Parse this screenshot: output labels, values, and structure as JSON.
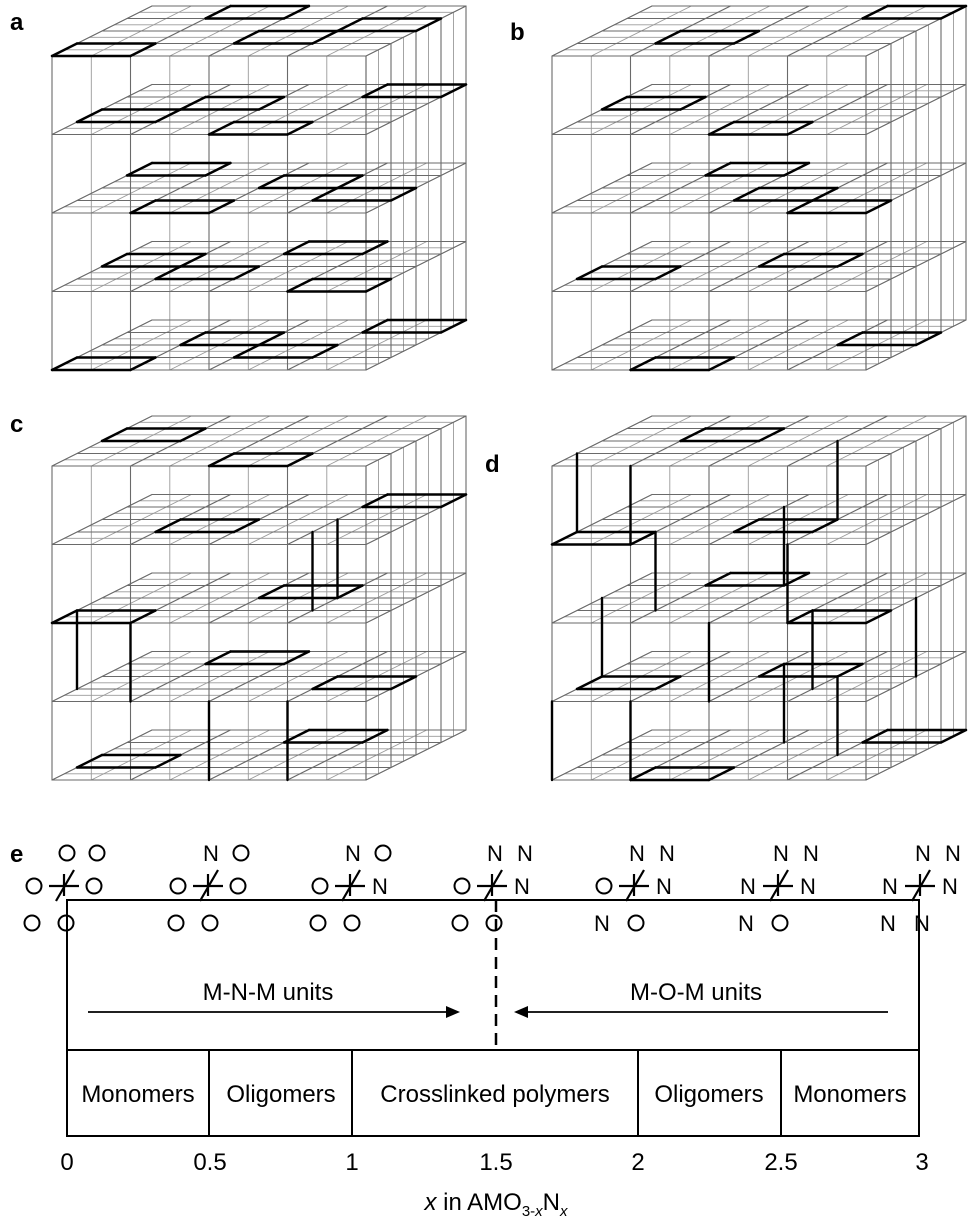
{
  "panels": {
    "a": {
      "label": "a"
    },
    "b": {
      "label": "b"
    },
    "c": {
      "label": "c"
    },
    "d": {
      "label": "d"
    },
    "e": {
      "label": "e"
    }
  },
  "octahedra": [
    {
      "top_left": "O",
      "top_right": "O",
      "left": "O",
      "right": "O",
      "bottom_left": "O",
      "bottom_right": "O"
    },
    {
      "top_left": "N",
      "top_right": "O",
      "left": "O",
      "right": "O",
      "bottom_left": "O",
      "bottom_right": "O"
    },
    {
      "top_left": "N",
      "top_right": "O",
      "left": "O",
      "right": "N",
      "bottom_left": "O",
      "bottom_right": "O"
    },
    {
      "top_left": "N",
      "top_right": "N",
      "left": "O",
      "right": "N",
      "bottom_left": "O",
      "bottom_right": "O"
    },
    {
      "top_left": "N",
      "top_right": "N",
      "left": "O",
      "right": "N",
      "bottom_left": "N",
      "bottom_right": "O"
    },
    {
      "top_left": "N",
      "top_right": "N",
      "left": "N",
      "right": "N",
      "bottom_left": "N",
      "bottom_right": "O"
    },
    {
      "top_left": "N",
      "top_right": "N",
      "left": "N",
      "right": "N",
      "bottom_left": "N",
      "bottom_right": "N"
    }
  ],
  "units": {
    "left": "M-N-M units",
    "right": "M-O-M units"
  },
  "segments": [
    "Monomers",
    "Oligomers",
    "Crosslinked polymers",
    "Oligomers",
    "Monomers"
  ],
  "axis": {
    "ticks": [
      "0",
      "0.5",
      "1",
      "1.5",
      "2",
      "2.5",
      "3"
    ],
    "label_parts": [
      "x",
      " in AMO",
      "3-",
      "x",
      "N",
      "x"
    ]
  }
}
